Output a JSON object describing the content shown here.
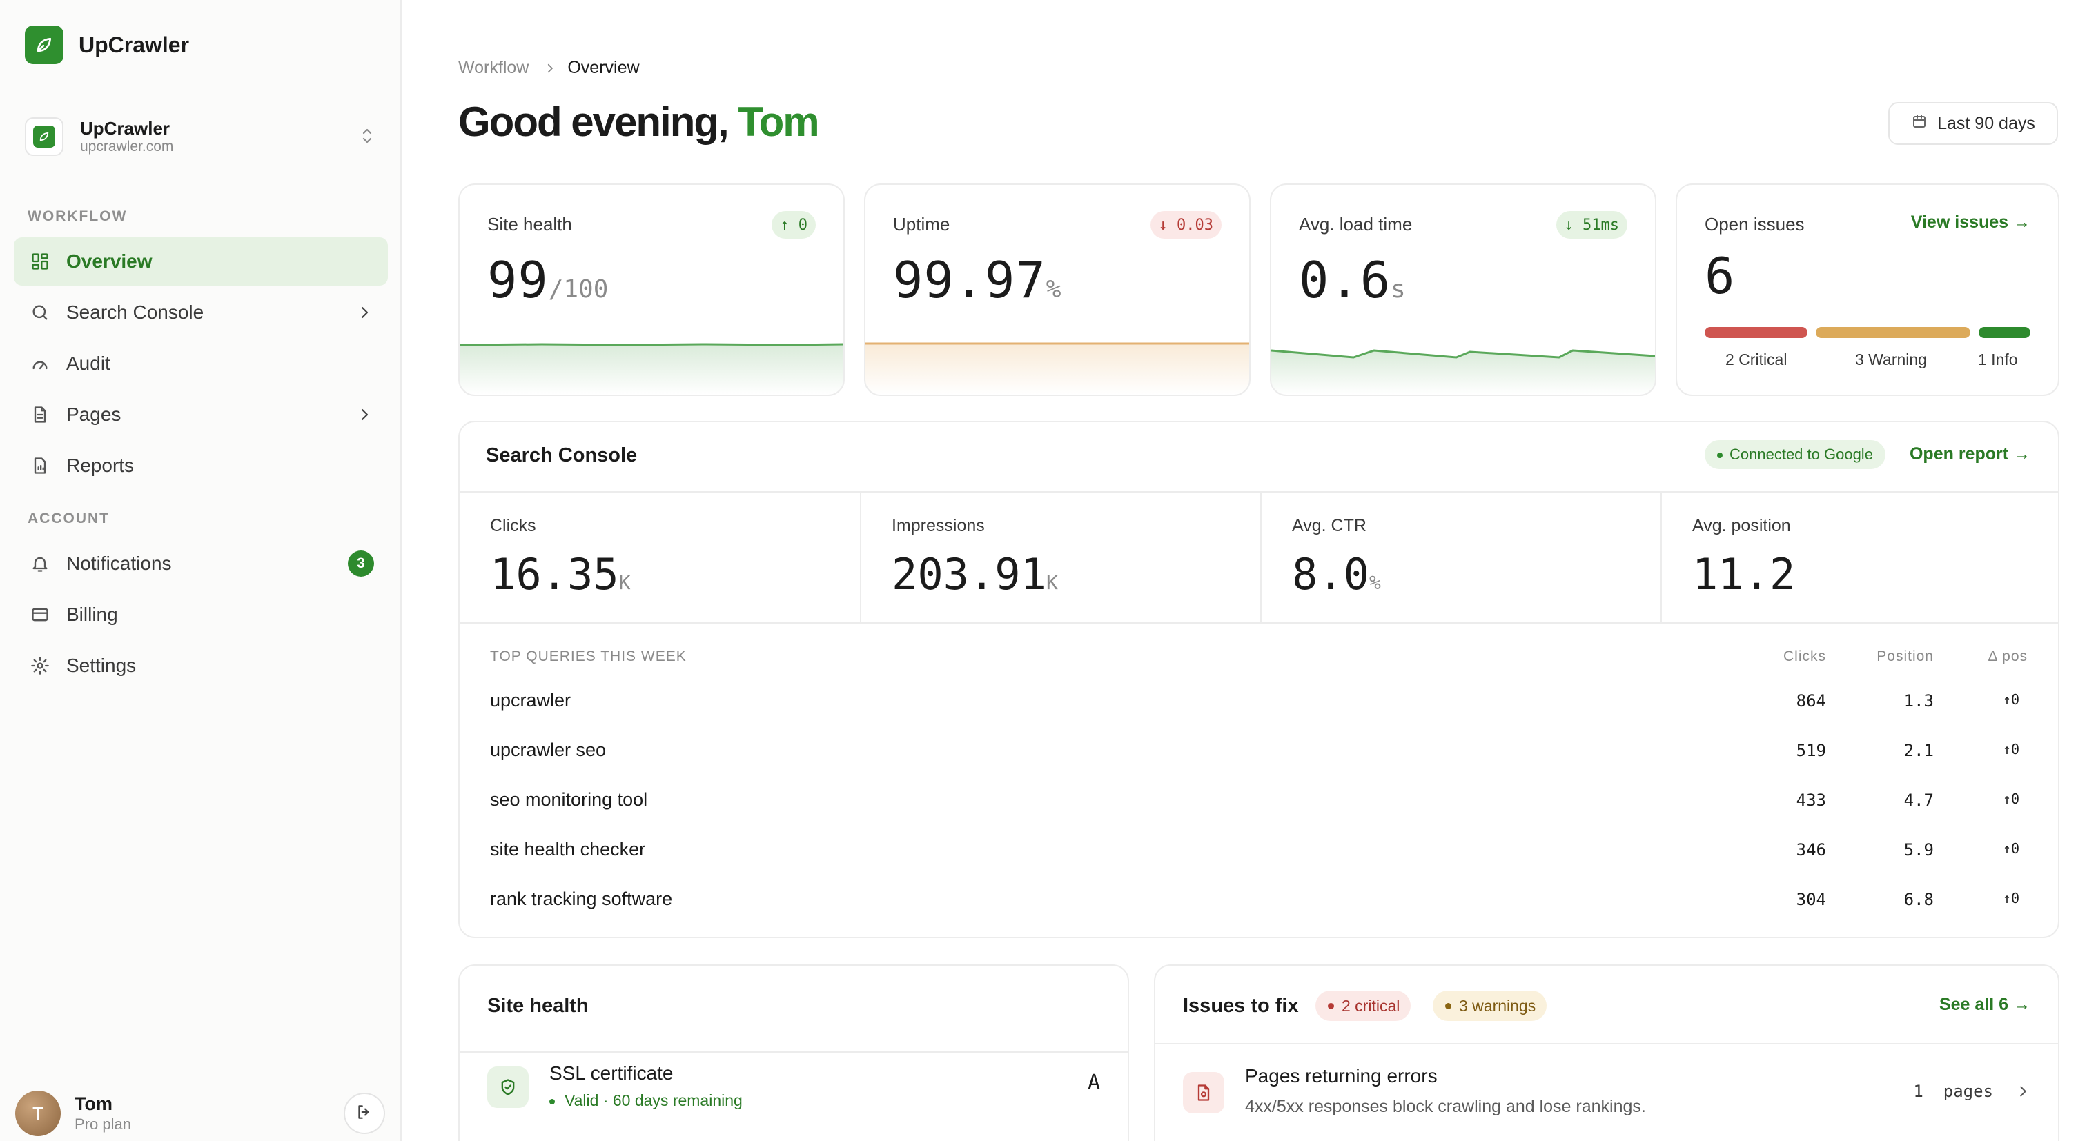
{
  "brand": {
    "name": "UpCrawler"
  },
  "workspace": {
    "name": "UpCrawler",
    "domain": "upcrawler.com"
  },
  "sidebar": {
    "workflow_label": "WORKFLOW",
    "account_label": "ACCOUNT",
    "items": [
      {
        "label": "Overview",
        "icon": "grid-icon",
        "active": true
      },
      {
        "label": "Search Console",
        "icon": "search-icon",
        "chevron": true
      },
      {
        "label": "Audit",
        "icon": "gauge-icon"
      },
      {
        "label": "Pages",
        "icon": "file-icon",
        "chevron": true
      },
      {
        "label": "Reports",
        "icon": "report-icon"
      },
      {
        "label": "Notifications",
        "icon": "bell-icon",
        "badge": "3"
      },
      {
        "label": "Billing",
        "icon": "card-icon"
      },
      {
        "label": "Settings",
        "icon": "gear-icon"
      }
    ]
  },
  "user": {
    "initial": "T",
    "name": "Tom",
    "plan": "Pro plan"
  },
  "breadcrumb": {
    "parent": "Workflow",
    "current": "Overview"
  },
  "greeting": {
    "prefix": "Good evening,",
    "name": "Tom"
  },
  "date_range": {
    "label": "Last 90 days"
  },
  "kpis": {
    "site_health": {
      "title": "Site health",
      "value": "99",
      "unit": "/100",
      "delta": "↑ 0"
    },
    "uptime": {
      "title": "Uptime",
      "value": "99.97",
      "unit": "%",
      "delta": "↓ 0.03"
    },
    "load_time": {
      "title": "Avg. load time",
      "value": "0.6",
      "unit": "s",
      "delta": "↓ 51ms"
    },
    "open_issues": {
      "title": "Open issues",
      "value": "6",
      "link": "View issues →",
      "critical": 2,
      "warning": 3,
      "info": 1,
      "critical_label": "2 Critical",
      "warning_label": "3 Warning",
      "info_label": "1 Info"
    }
  },
  "colors": {
    "accent": "#2f8f2f",
    "critical": "#cf5550",
    "warning": "#dcaa5a",
    "info": "#2d8a2d"
  },
  "search_console": {
    "title": "Search Console",
    "status": "Connected to Google",
    "link": "Open report →",
    "metrics": [
      {
        "title": "Clicks",
        "value": "16.35",
        "unit": "K"
      },
      {
        "title": "Impressions",
        "value": "203.91",
        "unit": "K"
      },
      {
        "title": "Avg. CTR",
        "value": "8.0",
        "unit": "%"
      },
      {
        "title": "Avg. position",
        "value": "11.2",
        "unit": ""
      }
    ],
    "queries_header": {
      "title": "TOP QUERIES THIS WEEK",
      "clicks": "Clicks",
      "position": "Position",
      "delta": "Δ pos"
    },
    "queries": [
      {
        "query": "upcrawler",
        "clicks": "864",
        "position": "1.3",
        "delta": "↑0"
      },
      {
        "query": "upcrawler seo",
        "clicks": "519",
        "position": "2.1",
        "delta": "↑0"
      },
      {
        "query": "seo monitoring tool",
        "clicks": "433",
        "position": "4.7",
        "delta": "↑0"
      },
      {
        "query": "site health checker",
        "clicks": "346",
        "position": "5.9",
        "delta": "↑0"
      },
      {
        "query": "rank tracking software",
        "clicks": "304",
        "position": "6.8",
        "delta": "↑0"
      }
    ]
  },
  "site_health_panel": {
    "title": "Site health",
    "rows": [
      {
        "name": "SSL certificate",
        "status": "Valid · 60 days remaining",
        "grade": "A",
        "icon": "shield-icon"
      }
    ]
  },
  "issues_panel": {
    "title": "Issues to fix",
    "critical_pill": "2  critical",
    "warning_pill": "3  warnings",
    "link": "See all 6 →",
    "rows": [
      {
        "name": "Pages returning errors",
        "description": "4xx/5xx responses block crawling and lose rankings.",
        "count": "1  pages",
        "icon": "file-error-icon"
      }
    ]
  }
}
